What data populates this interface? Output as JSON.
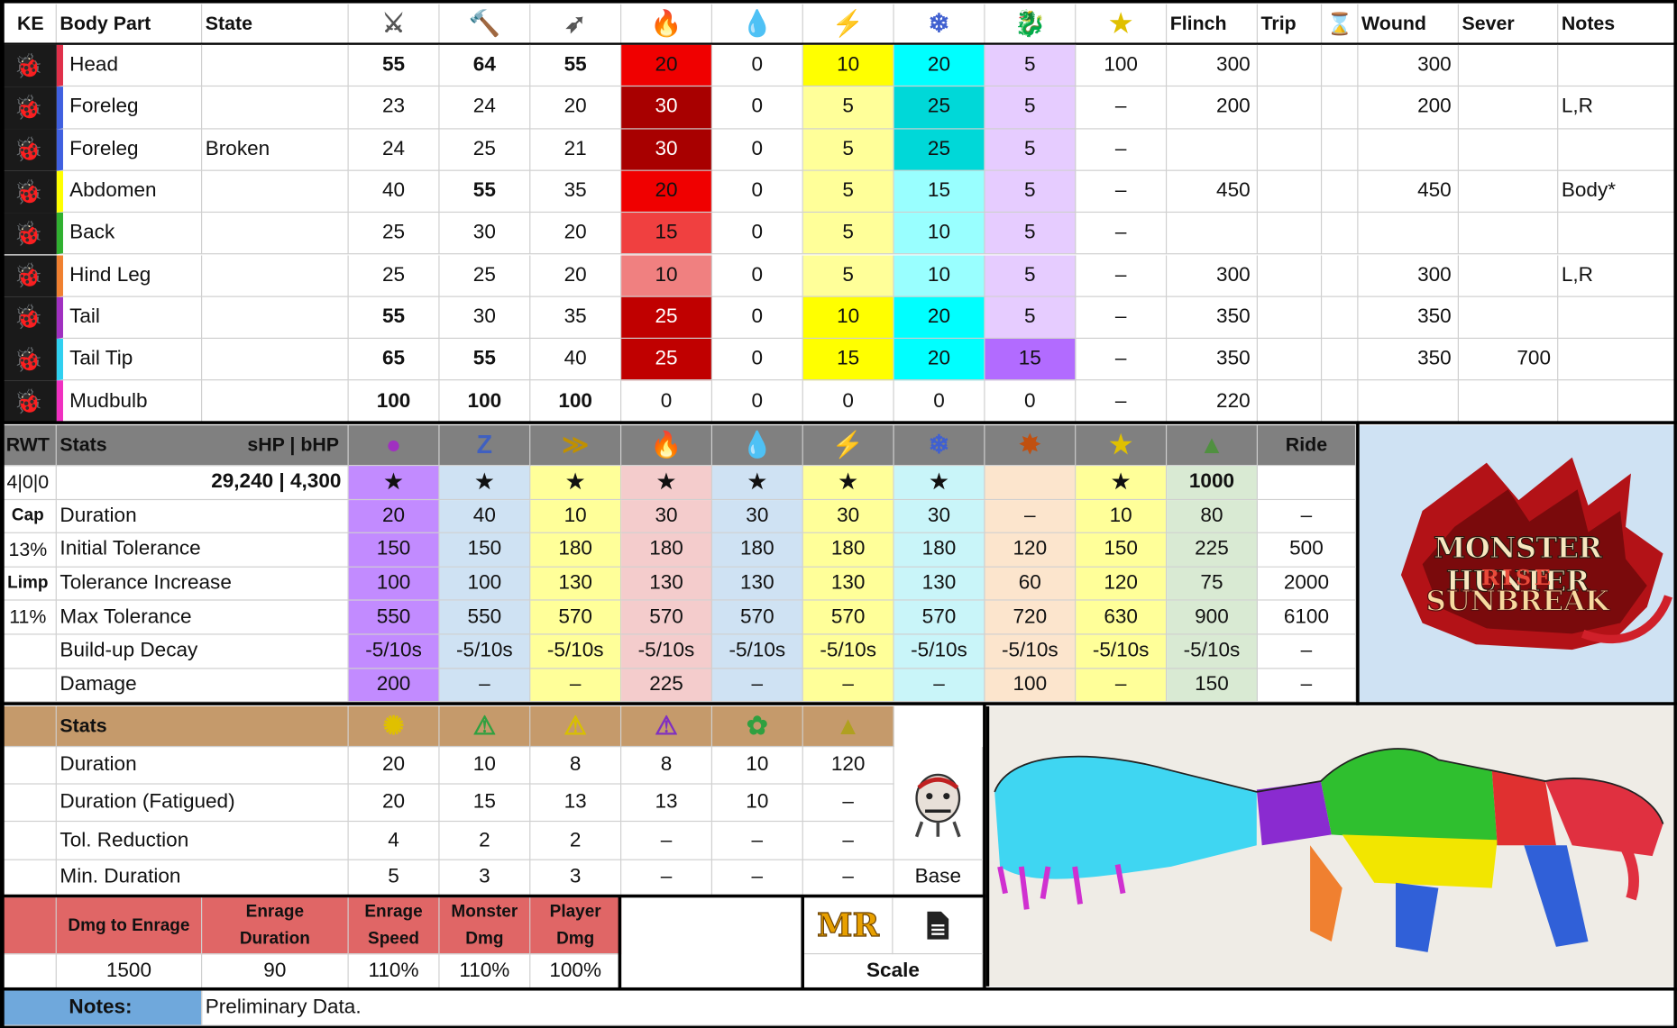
{
  "colors": {
    "fire_dark": "#a80000",
    "fire_red": "#f00000",
    "fire_mid": "#f04040",
    "fire_light": "#f08080",
    "thunder_strong": "#ffff00",
    "thunder_light": "#ffff99",
    "ice_strong": "#00ffff",
    "ice_mid": "#00d8d8",
    "ice_light": "#99ffff",
    "dragon_light": "#e6ccff",
    "dragon_strong": "#b26bff",
    "status_purple": "#c28bff",
    "status_blue": "#cfe2f3",
    "status_yellow": "#ffff99",
    "status_pink": "#f4cccc",
    "status_peach": "#fce5cd",
    "status_green": "#d9ead3",
    "tan": "#c59a6b",
    "salmon": "#e06666",
    "notes_blue": "#6fa8dc",
    "header_grey": "#808080",
    "panel_bg": "#cfe2f3"
  },
  "hitzone": {
    "headers": {
      "ke": "KE",
      "body_part": "Body Part",
      "state": "State",
      "flinch": "Flinch",
      "trip": "Trip",
      "wound": "Wound",
      "sever": "Sever",
      "notes": "Notes"
    },
    "icons": [
      "sever-icon",
      "blunt-icon",
      "shot-icon",
      "fire-icon",
      "water-icon",
      "thunder-icon",
      "ice-icon",
      "dragon-icon",
      "stun-icon",
      "hourglass-icon"
    ],
    "rows": [
      {
        "part": "Head",
        "state": "",
        "bar": "#e0304a",
        "bug": "#e05060",
        "v": [
          "55",
          "64",
          "55",
          "20",
          "0",
          "10",
          "20",
          "5",
          "100"
        ],
        "flinch": "300",
        "trip": "",
        "wound": "300",
        "sever": "",
        "notes": ""
      },
      {
        "part": "Foreleg",
        "state": "",
        "bar": "#4060e0",
        "bug": "#ffffff",
        "v": [
          "23",
          "24",
          "20",
          "30",
          "0",
          "5",
          "25",
          "5",
          "–"
        ],
        "flinch": "200",
        "trip": "",
        "wound": "200",
        "sever": "",
        "notes": "L,R"
      },
      {
        "part": "Foreleg",
        "state": "Broken",
        "bar": "#4060e0",
        "bug": "#ffffff",
        "v": [
          "24",
          "25",
          "21",
          "30",
          "0",
          "5",
          "25",
          "5",
          "–"
        ],
        "flinch": "",
        "trip": "",
        "wound": "",
        "sever": "",
        "notes": ""
      },
      {
        "part": "Abdomen",
        "state": "",
        "bar": "#ffff00",
        "bug": "#f0a030",
        "v": [
          "40",
          "55",
          "35",
          "20",
          "0",
          "5",
          "15",
          "5",
          "–"
        ],
        "flinch": "450",
        "trip": "",
        "wound": "450",
        "sever": "",
        "notes": "Body*"
      },
      {
        "part": "Back",
        "state": "",
        "bar": "#30b030",
        "bug": "#f0a030",
        "v": [
          "25",
          "30",
          "20",
          "15",
          "0",
          "5",
          "10",
          "5",
          "–"
        ],
        "flinch": "",
        "trip": "",
        "wound": "",
        "sever": "",
        "notes": ""
      },
      {
        "part": "Hind Leg",
        "state": "",
        "bar": "#f08030",
        "bug": "#ffffff",
        "v": [
          "25",
          "25",
          "20",
          "10",
          "0",
          "5",
          "10",
          "5",
          "–"
        ],
        "flinch": "300",
        "trip": "",
        "wound": "300",
        "sever": "",
        "notes": "L,R"
      },
      {
        "part": "Tail",
        "state": "",
        "bar": "#a030c0",
        "bug": "#e05060",
        "v": [
          "55",
          "30",
          "35",
          "25",
          "0",
          "10",
          "20",
          "5",
          "–"
        ],
        "flinch": "350",
        "trip": "",
        "wound": "350",
        "sever": "",
        "notes": ""
      },
      {
        "part": "Tail Tip",
        "state": "",
        "bar": "#30d0f0",
        "bug": "#e05060",
        "v": [
          "65",
          "55",
          "40",
          "25",
          "0",
          "15",
          "20",
          "15",
          "–"
        ],
        "flinch": "350",
        "trip": "",
        "wound": "350",
        "sever": "700",
        "notes": ""
      },
      {
        "part": "Mudbulb",
        "state": "",
        "bar": "#f030c0",
        "bug": "#e05060",
        "v": [
          "100",
          "100",
          "100",
          "0",
          "0",
          "0",
          "0",
          "0",
          "–"
        ],
        "flinch": "220",
        "trip": "",
        "wound": "",
        "sever": "",
        "notes": ""
      }
    ]
  },
  "status": {
    "headers": {
      "rwt": "RWT",
      "stats": "Stats",
      "hp": "sHP  |   bHP",
      "ride": "Ride"
    },
    "icons": [
      "poison-icon",
      "sleep-icon",
      "paralysis-icon",
      "fireblight-icon",
      "waterblight-icon",
      "thunderblight-icon",
      "iceblight-icon",
      "blast-icon",
      "stun-icon",
      "exhaust-icon"
    ],
    "left": [
      "4|0|0",
      "Cap",
      "13%",
      "Limp",
      "11%",
      "",
      ""
    ],
    "hp_value": "29,240 | 4,300",
    "stars": [
      "★",
      "★",
      "★",
      "★",
      "★",
      "★",
      "★",
      "",
      "★",
      "1000",
      ""
    ],
    "rows": [
      {
        "label": "Duration",
        "v": [
          "20",
          "40",
          "10",
          "30",
          "30",
          "30",
          "30",
          "–",
          "10",
          "80",
          "–"
        ]
      },
      {
        "label": "Initial Tolerance",
        "v": [
          "150",
          "150",
          "180",
          "180",
          "180",
          "180",
          "180",
          "120",
          "150",
          "225",
          "500"
        ]
      },
      {
        "label": "Tolerance Increase",
        "v": [
          "100",
          "100",
          "130",
          "130",
          "130",
          "130",
          "130",
          "60",
          "120",
          "75",
          "2000"
        ]
      },
      {
        "label": "Max Tolerance",
        "v": [
          "550",
          "550",
          "570",
          "570",
          "570",
          "570",
          "570",
          "720",
          "630",
          "900",
          "6100"
        ]
      },
      {
        "label": "Build-up Decay",
        "v": [
          "-5/10s",
          "-5/10s",
          "-5/10s",
          "-5/10s",
          "-5/10s",
          "-5/10s",
          "-5/10s",
          "-5/10s",
          "-5/10s",
          "-5/10s",
          "–"
        ]
      },
      {
        "label": "Damage",
        "v": [
          "200",
          "–",
          "–",
          "225",
          "–",
          "–",
          "–",
          "100",
          "–",
          "150",
          "–"
        ]
      }
    ]
  },
  "logo": {
    "line1": "MONSTER HUNTER",
    "line2": "RISE",
    "line3": "SUNBREAK"
  },
  "traps": {
    "header": "Stats",
    "icons": [
      "flash-pod-icon",
      "shock-trap-icon",
      "pitfall-trap-icon",
      "dung-trap-icon",
      "screamer-icon",
      "dung-pod-icon"
    ],
    "rows": [
      {
        "label": "Duration",
        "v": [
          "20",
          "10",
          "8",
          "8",
          "10",
          "120"
        ]
      },
      {
        "label": "Duration (Fatigued)",
        "v": [
          "20",
          "15",
          "13",
          "13",
          "10",
          "–"
        ]
      },
      {
        "label": "Tol. Reduction",
        "v": [
          "4",
          "2",
          "2",
          "–",
          "–",
          "–"
        ]
      },
      {
        "label": "Min. Duration",
        "v": [
          "5",
          "3",
          "3",
          "–",
          "–",
          "–"
        ]
      }
    ],
    "base_label": "Base"
  },
  "enrage": {
    "headers": [
      "Dmg to Enrage",
      "Enrage Duration",
      "Enrage Speed",
      "Monster Dmg",
      "Player Dmg"
    ],
    "values": [
      "1500",
      "90",
      "110%",
      "110%",
      "100%"
    ]
  },
  "scale": {
    "mr": "MR",
    "label": "Scale"
  },
  "notes": {
    "label": "Notes:",
    "text": "Preliminary Data."
  }
}
